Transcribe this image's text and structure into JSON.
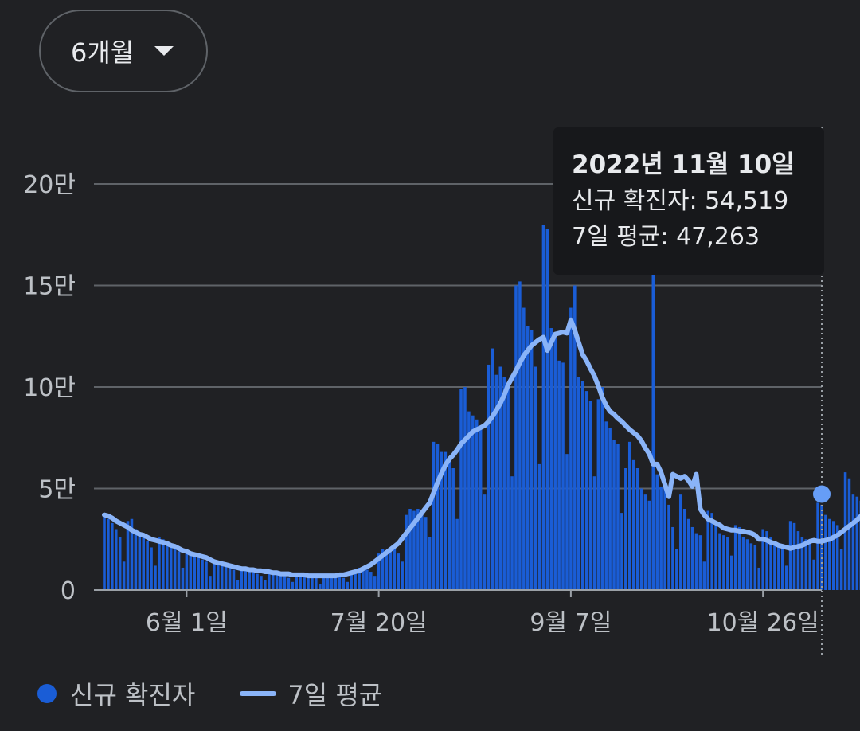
{
  "range_selector": {
    "label": "6개월"
  },
  "tooltip": {
    "date": "2022년 11월 10일",
    "cases_text": "신규 확진자: 54,519",
    "avg_text": "7일 평균: 47,263"
  },
  "legend": {
    "cases": "신규 확진자",
    "avg": "7일 평균"
  },
  "colors": {
    "background": "#202124",
    "bar": "#1a5dd6",
    "line": "#8ab4f8",
    "grid": "#5f6368",
    "text": "#bdc1c6"
  },
  "chart_data": {
    "type": "bar",
    "title": "",
    "xlabel": "",
    "ylabel": "",
    "ylim": [
      0,
      200000
    ],
    "y_ticks": [
      0,
      50000,
      100000,
      150000,
      200000
    ],
    "y_tick_labels": [
      "0",
      "5만",
      "10만",
      "15만",
      "20만"
    ],
    "x_ticks": [
      "2022-06-01",
      "2022-07-20",
      "2022-09-07",
      "2022-10-26"
    ],
    "x_tick_labels": [
      "6월 1일",
      "7월 20일",
      "9월 7일",
      "10월 26일"
    ],
    "x_range": [
      "2022-05-11",
      "2022-11-10"
    ],
    "grid": true,
    "legend_position": "bottom-left",
    "highlight": {
      "date": "2022-11-10",
      "cases": 54519,
      "avg": 47263
    },
    "series": [
      {
        "name": "신규 확진자",
        "type": "bar",
        "start": "2022-05-11",
        "values": [
          38000,
          35000,
          33000,
          30000,
          26000,
          14000,
          34000,
          35000,
          30000,
          27000,
          26000,
          24000,
          21000,
          12000,
          26000,
          25000,
          23000,
          22000,
          20000,
          19000,
          11000,
          20000,
          19000,
          18000,
          16000,
          15000,
          14000,
          7000,
          15000,
          14000,
          13000,
          12000,
          11000,
          10000,
          5000,
          11000,
          10000,
          9000,
          9000,
          8000,
          7000,
          5000,
          9000,
          9000,
          8000,
          8000,
          7000,
          6000,
          4000,
          8000,
          8000,
          7000,
          7000,
          6000,
          6000,
          3000,
          7000,
          7000,
          7000,
          7000,
          7000,
          6000,
          4000,
          8000,
          10000,
          11000,
          10000,
          10000,
          9000,
          7000,
          18000,
          20000,
          19000,
          20000,
          20000,
          18000,
          14000,
          37000,
          40000,
          39000,
          40000,
          39000,
          36000,
          26000,
          73000,
          72000,
          68000,
          68000,
          65000,
          60000,
          35000,
          99000,
          100000,
          88000,
          86000,
          84000,
          80000,
          47000,
          111000,
          119000,
          106000,
          110000,
          105000,
          101000,
          56000,
          150000,
          152000,
          139000,
          130000,
          128000,
          110000,
          62000,
          180000,
          178000,
          129000,
          124000,
          113000,
          112000,
          67000,
          139000,
          150000,
          105000,
          103000,
          98000,
          93000,
          56000,
          94000,
          100000,
          83000,
          80000,
          74000,
          72000,
          38000,
          60000,
          73000,
          64000,
          60000,
          50000,
          47000,
          44000,
          158000,
          57000,
          51000,
          50000,
          42000,
          31000,
          20000,
          47000,
          40000,
          35000,
          31000,
          28000,
          27000,
          14000,
          39000,
          38000,
          32000,
          28000,
          27000,
          26000,
          17000,
          32000,
          31000,
          26000,
          25000,
          23000,
          22000,
          11000,
          30000,
          29000,
          26000,
          24000,
          23000,
          21000,
          12000,
          34000,
          33000,
          29000,
          26000,
          25000,
          23000,
          15000,
          43000,
          42000,
          37000,
          35000,
          34000,
          32000,
          20000,
          58000,
          55000,
          47000,
          46000,
          44000,
          40000,
          18000,
          62000,
          62000,
          54519
        ]
      },
      {
        "name": "7일 평균",
        "type": "line",
        "start": "2022-05-11",
        "values": [
          37000,
          36500,
          35500,
          34000,
          33000,
          32000,
          31000,
          29500,
          28500,
          27500,
          27000,
          26000,
          25000,
          24500,
          24000,
          23500,
          23000,
          22000,
          21500,
          20500,
          19500,
          19000,
          18000,
          17500,
          17000,
          16500,
          16000,
          15000,
          14000,
          13500,
          13000,
          12500,
          12000,
          11500,
          11000,
          10500,
          10500,
          10000,
          10000,
          9500,
          9500,
          9000,
          9000,
          8500,
          8500,
          8000,
          8000,
          8000,
          7500,
          7500,
          7500,
          7500,
          7000,
          7000,
          7000,
          7000,
          7000,
          7000,
          7000,
          7000,
          7500,
          7500,
          8000,
          8500,
          9000,
          9500,
          10500,
          11500,
          12500,
          14000,
          15500,
          17000,
          18500,
          20000,
          21500,
          23000,
          25500,
          28000,
          30500,
          33000,
          35500,
          38000,
          40500,
          43000,
          48000,
          53000,
          57500,
          61500,
          64500,
          66500,
          69000,
          72000,
          74000,
          76000,
          78000,
          79000,
          80000,
          81000,
          83000,
          85500,
          88500,
          92000,
          96000,
          101000,
          104500,
          108000,
          112000,
          115500,
          118000,
          120500,
          122000,
          123500,
          124500,
          118000,
          122000,
          126000,
          126500,
          127000,
          126500,
          133000,
          128000,
          122000,
          116000,
          113000,
          109000,
          105500,
          100500,
          95000,
          91000,
          88000,
          86500,
          84500,
          83000,
          81000,
          79000,
          77500,
          76000,
          73500,
          70000,
          67000,
          62000,
          62000,
          58000,
          52000,
          46000,
          57000,
          56000,
          55000,
          56000,
          54000,
          51000,
          57000,
          40000,
          37000,
          35000,
          34000,
          33000,
          32000,
          30500,
          30000,
          29500,
          29500,
          29000,
          29000,
          28500,
          28000,
          27000,
          25000,
          25000,
          24500,
          23500,
          23000,
          22000,
          21500,
          21000,
          20500,
          21000,
          21500,
          22000,
          23000,
          24000,
          24500,
          24000,
          24000,
          24500,
          25000,
          26000,
          27000,
          28500,
          30000,
          31500,
          33000,
          34500,
          36500,
          38000,
          39500,
          41000,
          42000,
          43000,
          43500,
          44000,
          44000,
          44500,
          47263
        ]
      }
    ]
  }
}
